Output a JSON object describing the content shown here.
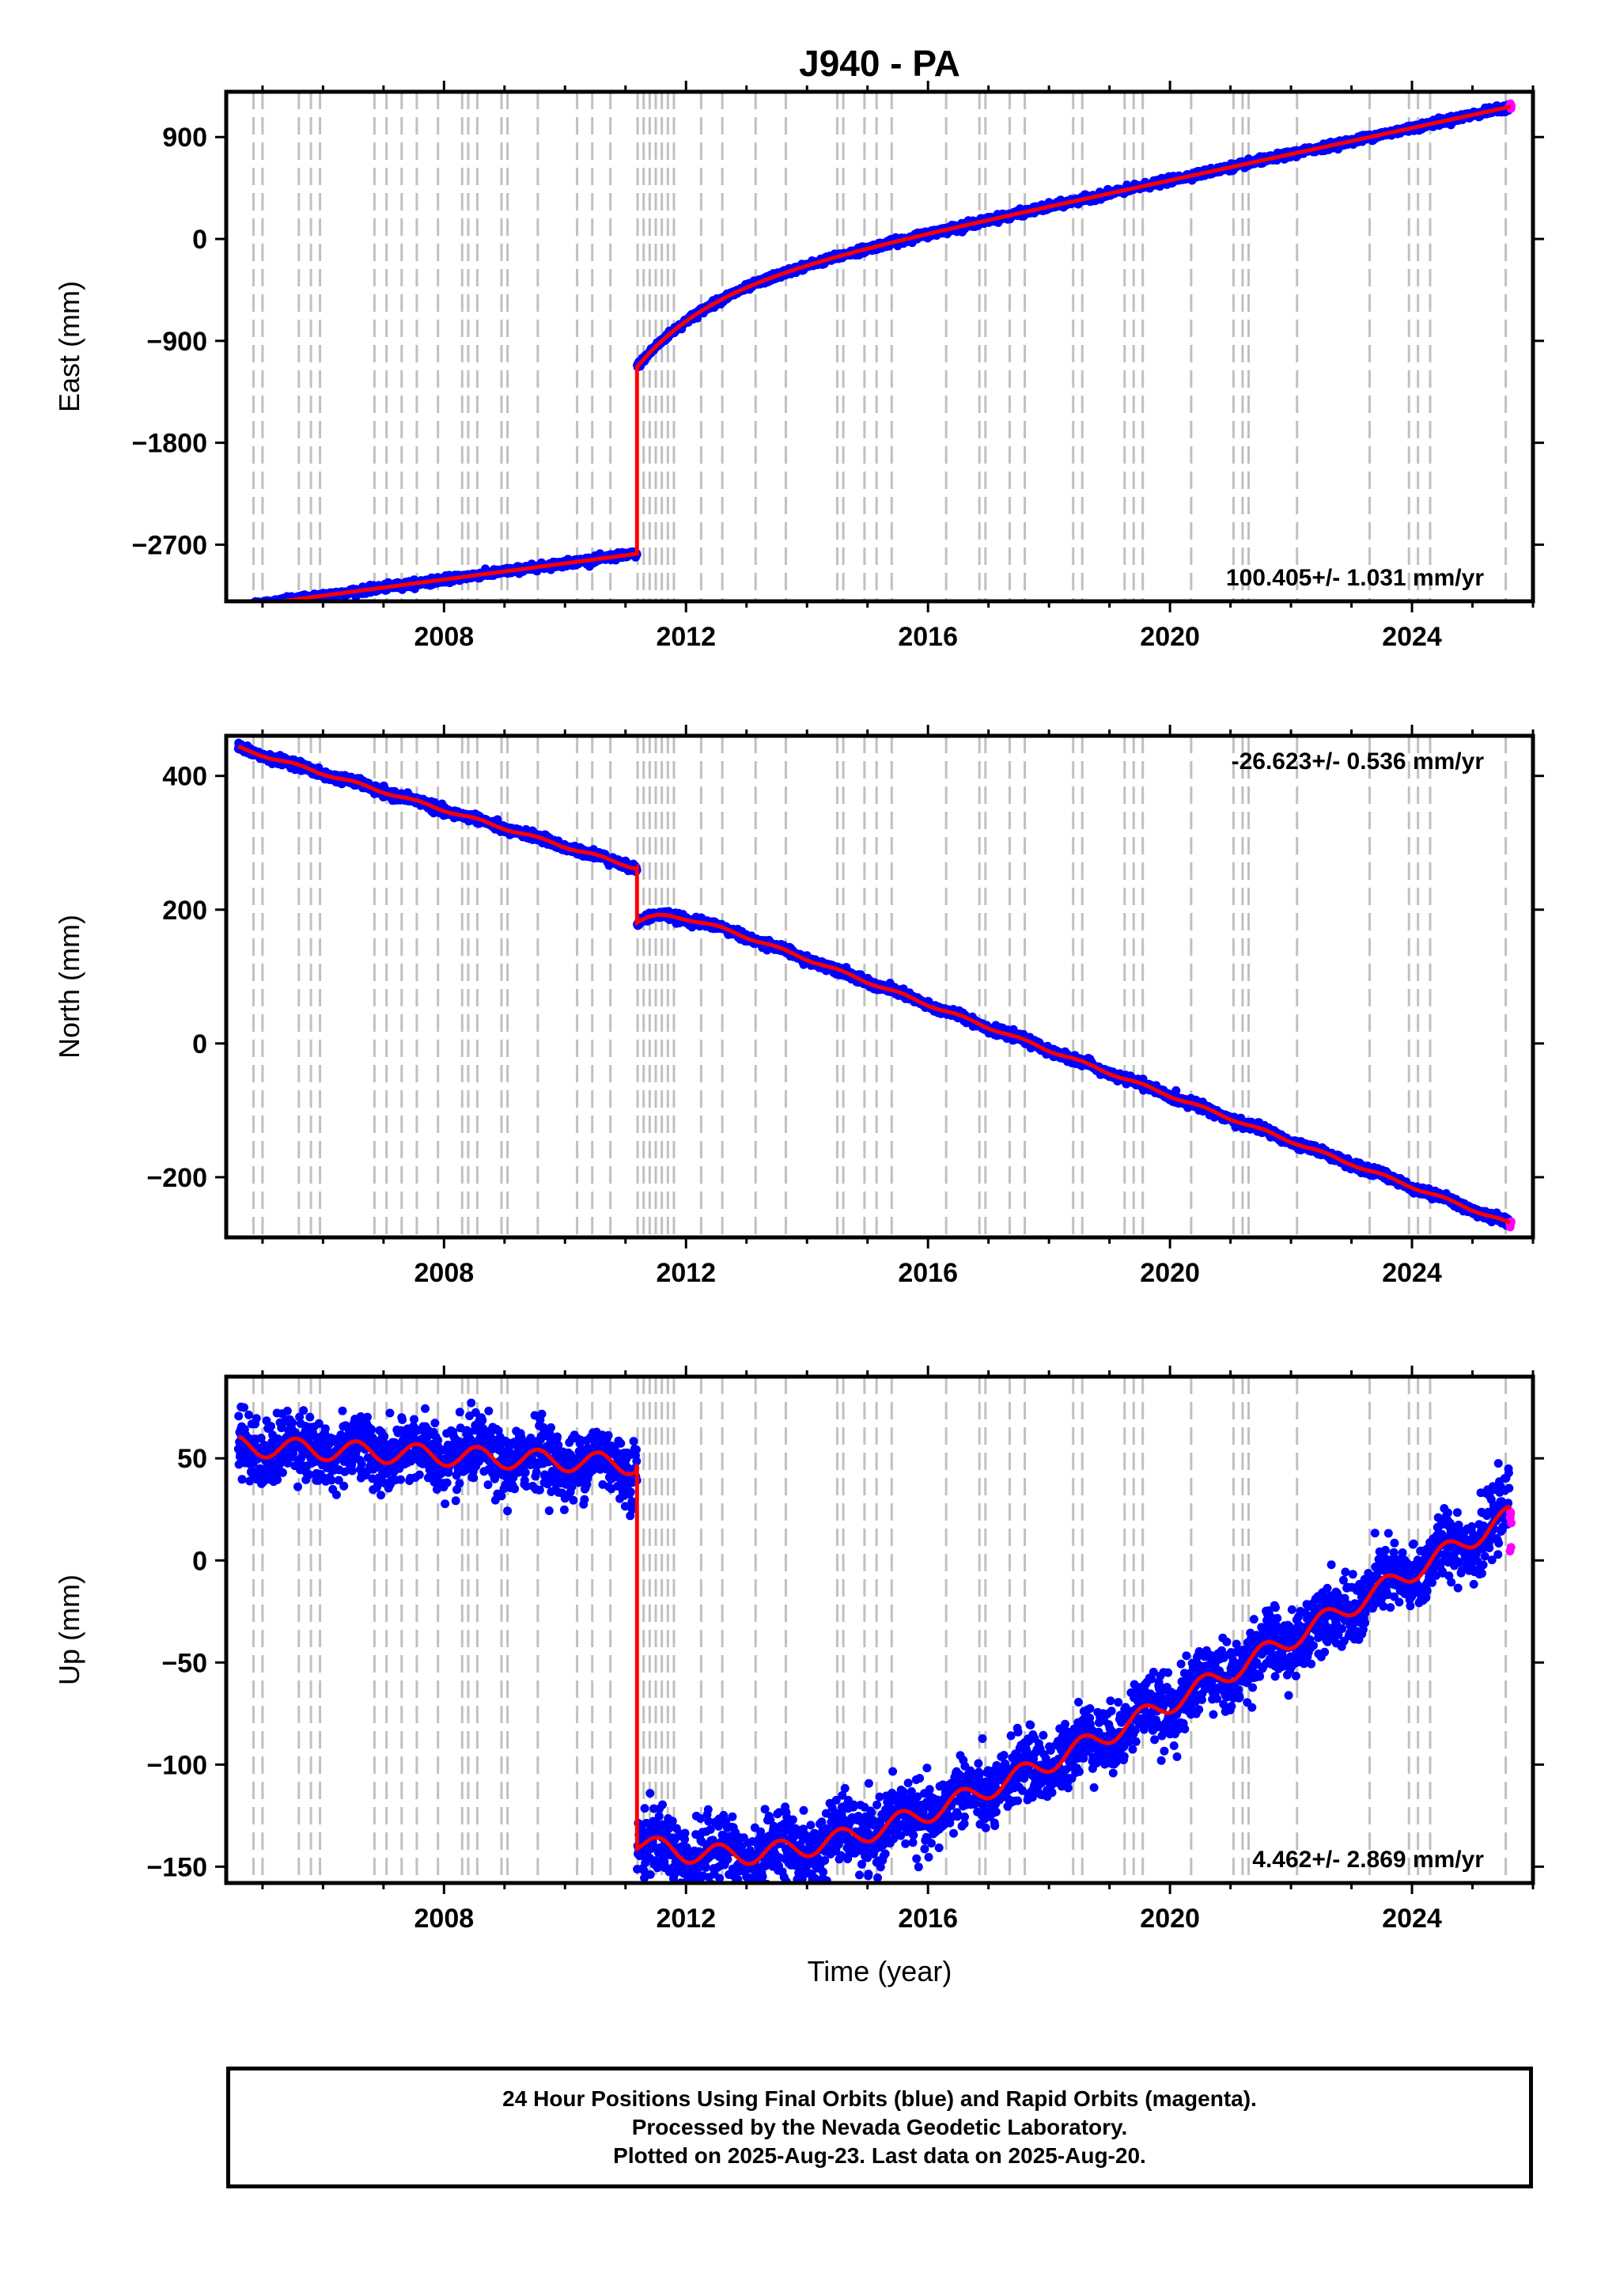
{
  "chart_data": {
    "type": "scatter",
    "title": "J940 - PA",
    "xlabel": "Time (year)",
    "x_ticks": [
      2008,
      2012,
      2016,
      2020,
      2024
    ],
    "xlim": [
      2004.4,
      2026.0
    ],
    "data_start": 2004.6,
    "data_end": 2025.64,
    "offset_epoch": 2011.19,
    "event_lines": [
      2004.85,
      2005.0,
      2005.6,
      2005.8,
      2005.95,
      2006.85,
      2007.05,
      2007.3,
      2007.55,
      2007.9,
      2008.3,
      2008.4,
      2008.55,
      2008.95,
      2009.05,
      2009.55,
      2010.2,
      2010.45,
      2010.75,
      2011.2,
      2011.3,
      2011.4,
      2011.5,
      2011.6,
      2011.7,
      2011.8,
      2012.25,
      2012.6,
      2013.15,
      2013.65,
      2014.5,
      2014.6,
      2014.95,
      2015.15,
      2015.4,
      2016.3,
      2016.85,
      2016.95,
      2017.35,
      2017.6,
      2018.4,
      2018.55,
      2019.25,
      2019.4,
      2019.55,
      2020.35,
      2021.05,
      2021.2,
      2021.3,
      2022.1,
      2023.3,
      2023.95,
      2024.1,
      2024.3,
      2025.55
    ],
    "series_colors": {
      "final": "#0000ff",
      "rapid": "#ff00ff",
      "model": "#ff0000",
      "event": "#c0c0c0"
    },
    "panels": [
      {
        "ylabel": "East (mm)",
        "y_ticks": [
          900,
          0,
          -900,
          -1800,
          -2700
        ],
        "ylim": [
          -3200,
          1300
        ],
        "rate_label": "100.405+/- 1.031 mm/yr",
        "rate_position": "bottom-right",
        "model": {
          "pre_start_value": -3250,
          "pre_end_value": -2780,
          "post_start_value": -1130,
          "post_end_value": 1170,
          "post_decay_amp": 630,
          "post_decay_tau": 1.2,
          "seasonal_amp": 0,
          "noise_sd": 14
        }
      },
      {
        "ylabel": "North (mm)",
        "y_ticks": [
          400,
          200,
          0,
          -200
        ],
        "ylim": [
          -290,
          460
        ],
        "rate_label": "-26.623+/- 0.536 mm/yr",
        "rate_position": "top-right",
        "model": {
          "pre_start_value": 442,
          "pre_end_value": 262,
          "post_start_value": 182,
          "post_end_value": -270,
          "post_decay_amp": 40,
          "post_decay_tau": 0.5,
          "seasonal_amp": 2,
          "noise_sd": 3
        }
      },
      {
        "ylabel": "Up (mm)",
        "y_ticks": [
          50,
          0,
          -50,
          -100,
          -150
        ],
        "ylim": [
          -158,
          90
        ],
        "rate_label": "4.462+/- 2.869 mm/yr",
        "rate_position": "bottom-right",
        "model": {
          "pre_start_value": 56,
          "pre_end_value": 47,
          "post_start_value": -138,
          "post_end_value": 22,
          "post_decay_amp": -92,
          "post_decay_tau": 3.5,
          "seasonal_amp": 5,
          "noise_sd": 8
        }
      }
    ]
  },
  "footer": {
    "line1": "24 Hour Positions Using Final Orbits (blue) and Rapid Orbits (magenta).",
    "line2": "Processed by the Nevada Geodetic Laboratory.",
    "line3": "Plotted on 2025-Aug-23. Last data on 2025-Aug-20."
  }
}
